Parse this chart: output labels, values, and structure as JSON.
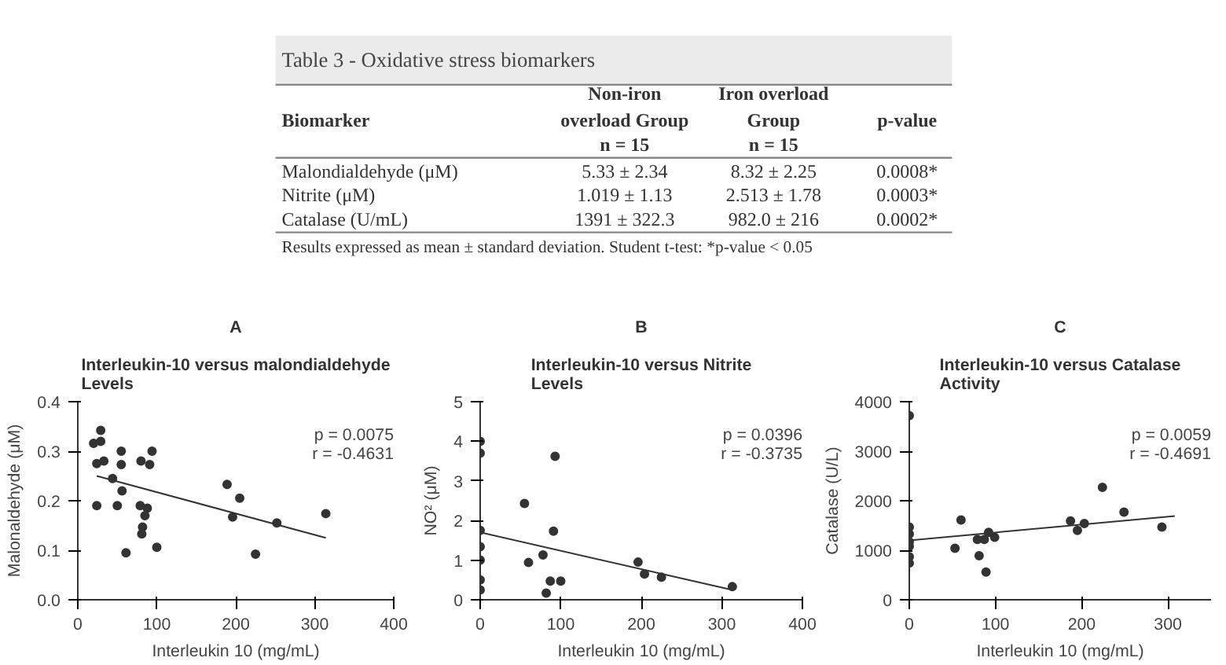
{
  "chart_data": [
    {
      "type": "other",
      "title": "Table 3 - Oxidative stress biomarkers",
      "annotations": [
        "Biomarker",
        "Non-iron\noverload Group",
        "Iron overload\nGroup",
        "p-value",
        "n = 15",
        "n = 15",
        "Malondialdehyde (μM)",
        "5.33 ± 2.34",
        "8.32 ± 2.25",
        "0.0008*",
        "Nitrite (μM)",
        "1.019 ± 1.13",
        "2.513 ± 1.78",
        "0.0003*",
        "Catalase (U/mL)",
        "1391 ± 322.3",
        "982.0 ± 216",
        "0.0002*",
        "Results expressed as mean ± standard deviation. Student t-test: *p-value < 0.05"
      ]
    },
    {
      "type": "scatter",
      "subtitle": "A",
      "title": "Interleukin-10 versus malondialdehyde\nLevels",
      "xlabel": "Interleukin 10 (mg/mL)",
      "ylabel": "Malonaldehyde (μM)",
      "xlim": [
        0,
        400
      ],
      "xticks": [
        0,
        100,
        200,
        300,
        400
      ],
      "ylim": [
        0,
        0.4
      ],
      "yticks": [
        {
          "value": 0,
          "label": "0.0"
        },
        0.1,
        0.2,
        0.3,
        0.4
      ],
      "grid": false,
      "annotations": [
        "p = 0.0075",
        "r = -0.4631"
      ],
      "series": [
        {
          "type": "scatter",
          "marker": "circle",
          "color": "#333333",
          "x": [
            20,
            29,
            29,
            24,
            24,
            33,
            44,
            50,
            55,
            55,
            56,
            61,
            80,
            91,
            94,
            79,
            88,
            85,
            82,
            81,
            100,
            189,
            196,
            205,
            225,
            252,
            314
          ],
          "values": [
            0.316,
            0.342,
            0.32,
            0.275,
            0.19,
            0.28,
            0.245,
            0.19,
            0.3,
            0.273,
            0.22,
            0.095,
            0.28,
            0.273,
            0.3,
            0.19,
            0.185,
            0.17,
            0.147,
            0.133,
            0.106,
            0.233,
            0.167,
            0.205,
            0.092,
            0.155,
            0.174
          ]
        },
        {
          "type": "line",
          "color": "#333333",
          "x": [
            24,
            314
          ],
          "values": [
            0.25,
            0.125
          ]
        }
      ]
    },
    {
      "type": "scatter",
      "subtitle": "B",
      "title": "Interleukin-10 versus Nitrite\nLevels",
      "xlabel": "Interleukin 10 (mg/mL)",
      "ylabel": "NO² (μM)",
      "xlim": [
        0,
        400
      ],
      "xticks": [
        0,
        100,
        200,
        300,
        400
      ],
      "ylim": [
        0,
        5
      ],
      "yticks": [
        0,
        1,
        2,
        3,
        4,
        5
      ],
      "grid": false,
      "annotations": [
        "p = 0.0396",
        "r = -0.3735"
      ],
      "series": [
        {
          "type": "scatter",
          "marker": "circle",
          "color": "#333333",
          "x": [
            0,
            0,
            0,
            0,
            0,
            0,
            0,
            55,
            60,
            78,
            91,
            93,
            82,
            87,
            100,
            196,
            204,
            225,
            313
          ],
          "values": [
            4.0,
            3.7,
            1.75,
            1.34,
            1.0,
            0.5,
            0.25,
            2.43,
            0.94,
            1.13,
            1.73,
            3.62,
            0.17,
            0.47,
            0.47,
            0.95,
            0.65,
            0.57,
            0.33
          ]
        },
        {
          "type": "line",
          "color": "#333333",
          "x": [
            0,
            313
          ],
          "values": [
            1.7,
            0.25
          ]
        }
      ]
    },
    {
      "type": "scatter",
      "subtitle": "C",
      "title": "Interleukin-10 versus Catalase\nActivity",
      "xlabel": "Interleukin 10 (mg/mL)",
      "ylabel": "Catalase (U/L)",
      "xlim": [
        0,
        350
      ],
      "xticks": [
        0,
        100,
        200,
        300
      ],
      "ylim": [
        0,
        4000
      ],
      "yticks": [
        0,
        1000,
        2000,
        3000,
        4000
      ],
      "grid": false,
      "annotations": [
        "p = 0.0059",
        "r = -0.4691"
      ],
      "series": [
        {
          "type": "scatter",
          "marker": "circle",
          "color": "#333333",
          "x": [
            0,
            0,
            0,
            0,
            0,
            0,
            0,
            53,
            60,
            79,
            87,
            81,
            89,
            92,
            99,
            187,
            195,
            203,
            224,
            249,
            293
          ],
          "values": [
            3720,
            1470,
            1330,
            1170,
            1080,
            870,
            740,
            1040,
            1610,
            1220,
            1220,
            890,
            560,
            1360,
            1260,
            1590,
            1400,
            1540,
            2270,
            1770,
            1470
          ]
        },
        {
          "type": "line",
          "color": "#333333",
          "x": [
            0,
            308
          ],
          "values": [
            1200,
            1690
          ]
        }
      ]
    }
  ]
}
